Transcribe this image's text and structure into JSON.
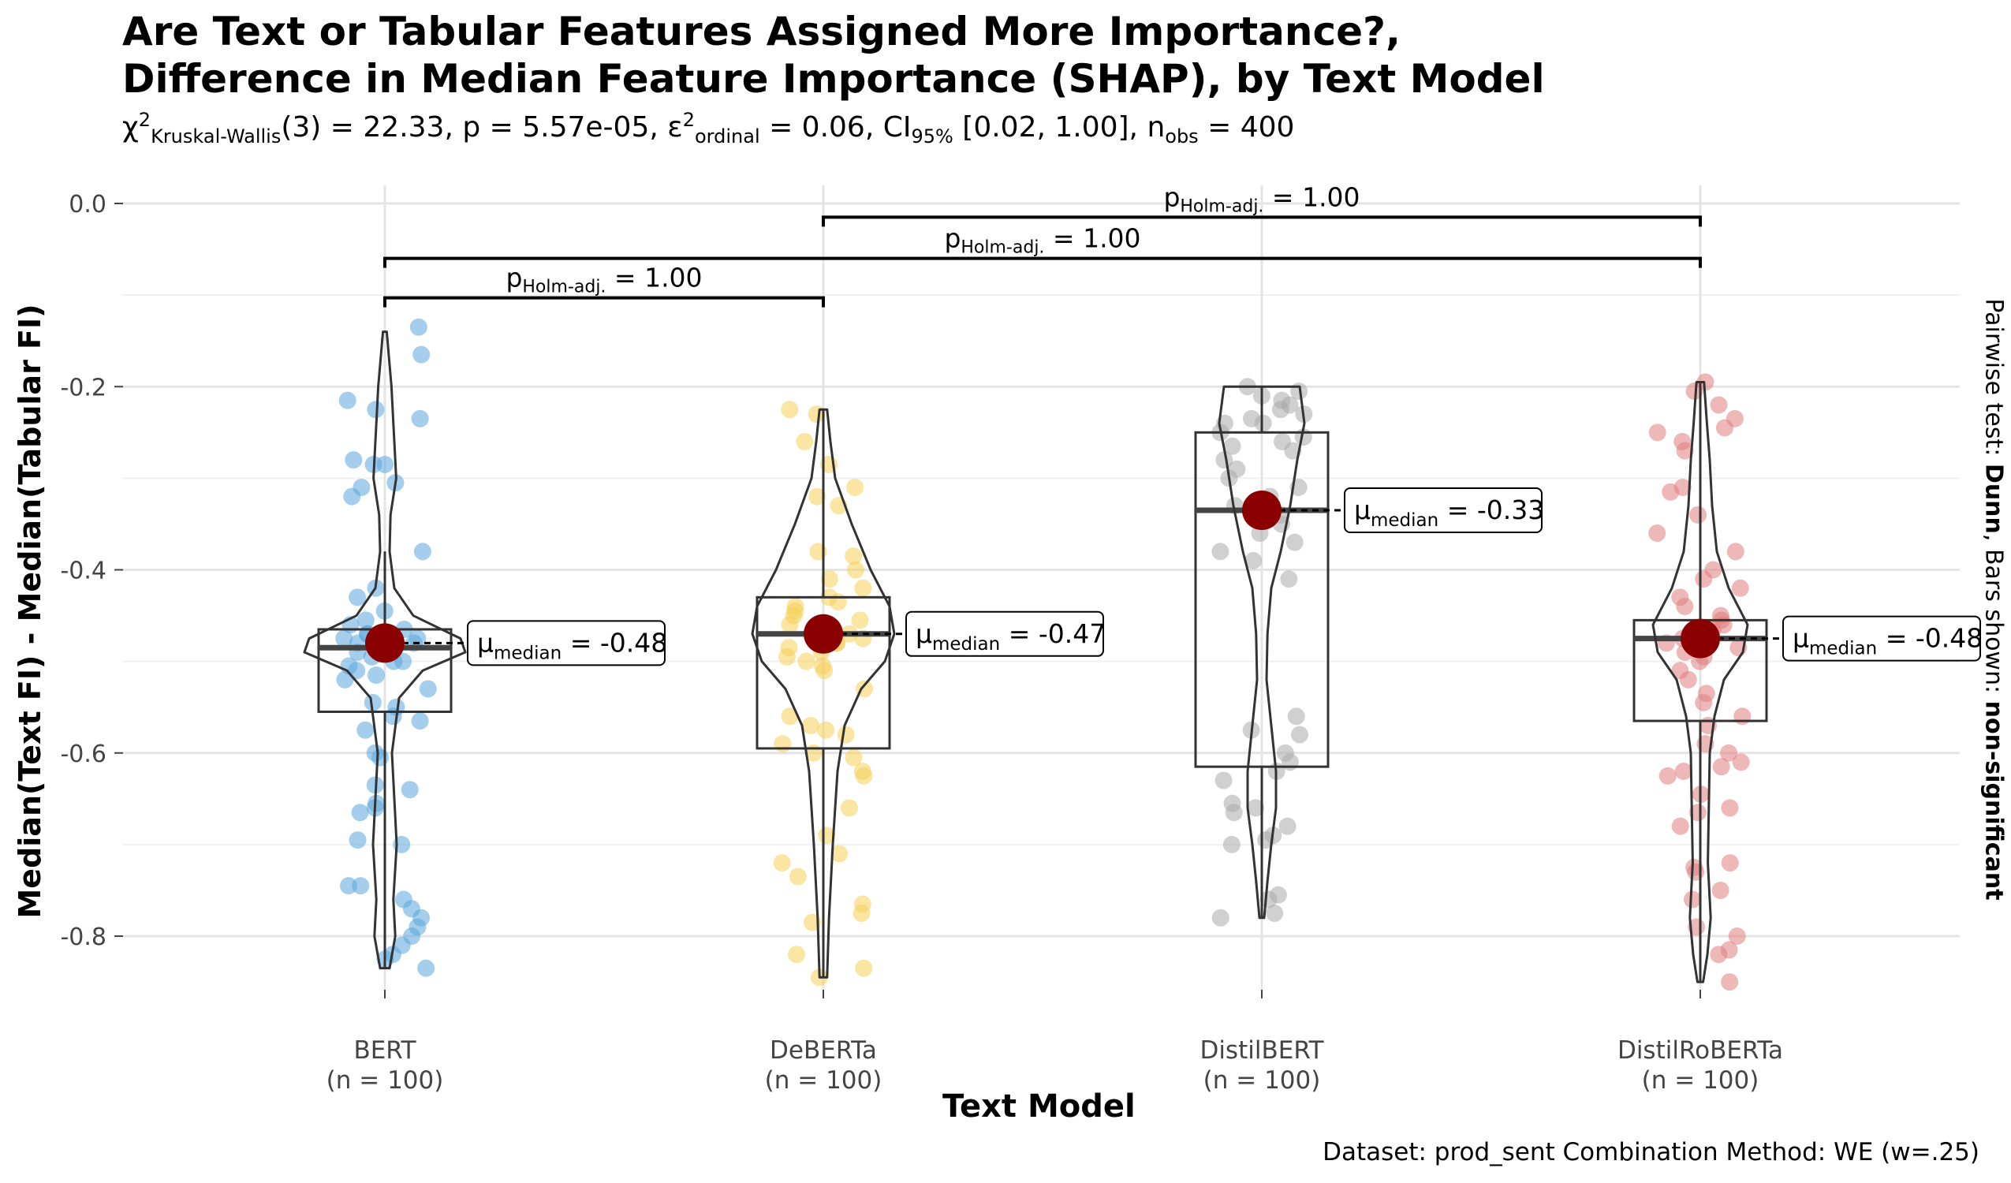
{
  "title": "Are Text or Tabular Features Assigned More Importance?,\nDifference in Median Feature Importance (SHAP), by Text Model",
  "subtitle": {
    "chi": "χ",
    "chi_sup": "2",
    "chi_sub": "Kruskal-Wallis",
    "stat": "(3) = 22.33, p = 5.57e-05, ",
    "eps": "ε",
    "eps_sup": "2",
    "eps_sub": "ordinal",
    "eps_val": " = 0.06, CI",
    "ci_sub": "95%",
    "ci_val": " [0.02, 1.00], n",
    "n_sub": "obs",
    "n_val": " = 400"
  },
  "xlabel": "Text Model",
  "ylabel": "Median(Text FI) - Median(Tabular FI)",
  "side_note": {
    "prefix": "Pairwise test: ",
    "test": "Dunn",
    "middle": ", Bars shown: ",
    "shown": "non-significant"
  },
  "caption": "Dataset:  prod_sent Combination Method:  WE (w=.25)",
  "chart_data": {
    "type": "violin",
    "categories": [
      "BERT",
      "DeBERTa",
      "DistilBERT",
      "DistilRoBERTa"
    ],
    "category_counts": [
      "(n = 100)",
      "(n = 100)",
      "(n = 100)",
      "(n = 100)"
    ],
    "ylim": [
      -0.87,
      0.02
    ],
    "yticks": [
      0.0,
      -0.2,
      -0.4,
      -0.6,
      -0.8
    ],
    "ytick_labels": [
      "0.0",
      "-0.2",
      "-0.4",
      "-0.6",
      "-0.8"
    ],
    "grid": true,
    "colors": {
      "BERT": "#5aa5dc",
      "DeBERTa": "#f5cf58",
      "DistilBERT": "#a9a9a9",
      "DistilRoBERTa": "#e07e7e",
      "median_point": "#8b0000"
    },
    "series": [
      {
        "name": "BERT",
        "median": -0.48,
        "median_label": "-0.48",
        "box": {
          "q1": -0.555,
          "median": -0.485,
          "q3": -0.465,
          "whisker_low": -0.835,
          "whisker_high": -0.38
        },
        "violin": [
          [
            -0.14,
            0.004
          ],
          [
            -0.2,
            0.014
          ],
          [
            -0.26,
            0.02
          ],
          [
            -0.3,
            0.024
          ],
          [
            -0.34,
            0.012
          ],
          [
            -0.38,
            0.01
          ],
          [
            -0.42,
            0.02
          ],
          [
            -0.45,
            0.06
          ],
          [
            -0.475,
            0.16
          ],
          [
            -0.49,
            0.17
          ],
          [
            -0.51,
            0.08
          ],
          [
            -0.54,
            0.03
          ],
          [
            -0.6,
            0.015
          ],
          [
            -0.7,
            0.025
          ],
          [
            -0.76,
            0.018
          ],
          [
            -0.8,
            0.022
          ],
          [
            -0.835,
            0.01
          ]
        ],
        "points": [
          -0.135,
          -0.165,
          -0.215,
          -0.225,
          -0.235,
          -0.28,
          -0.285,
          -0.285,
          -0.305,
          -0.31,
          -0.32,
          -0.38,
          -0.42,
          -0.43,
          -0.445,
          -0.455,
          -0.46,
          -0.465,
          -0.47,
          -0.47,
          -0.475,
          -0.475,
          -0.48,
          -0.48,
          -0.485,
          -0.49,
          -0.49,
          -0.495,
          -0.5,
          -0.5,
          -0.505,
          -0.51,
          -0.515,
          -0.52,
          -0.53,
          -0.545,
          -0.55,
          -0.56,
          -0.565,
          -0.575,
          -0.6,
          -0.605,
          -0.635,
          -0.64,
          -0.655,
          -0.66,
          -0.665,
          -0.695,
          -0.7,
          -0.745,
          -0.745,
          -0.76,
          -0.77,
          -0.78,
          -0.79,
          -0.8,
          -0.81,
          -0.82,
          -0.825,
          -0.835
        ]
      },
      {
        "name": "DeBERTa",
        "median": -0.47,
        "median_label": "-0.47",
        "box": {
          "q1": -0.595,
          "median": -0.47,
          "q3": -0.43,
          "whisker_low": -0.845,
          "whisker_high": -0.225
        },
        "violin": [
          [
            -0.225,
            0.008
          ],
          [
            -0.26,
            0.015
          ],
          [
            -0.3,
            0.025
          ],
          [
            -0.35,
            0.06
          ],
          [
            -0.4,
            0.1
          ],
          [
            -0.44,
            0.14
          ],
          [
            -0.47,
            0.15
          ],
          [
            -0.5,
            0.13
          ],
          [
            -0.53,
            0.08
          ],
          [
            -0.57,
            0.045
          ],
          [
            -0.62,
            0.03
          ],
          [
            -0.7,
            0.02
          ],
          [
            -0.78,
            0.012
          ],
          [
            -0.845,
            0.008
          ]
        ],
        "points": [
          -0.225,
          -0.23,
          -0.26,
          -0.285,
          -0.31,
          -0.32,
          -0.33,
          -0.38,
          -0.385,
          -0.4,
          -0.41,
          -0.42,
          -0.43,
          -0.435,
          -0.44,
          -0.445,
          -0.45,
          -0.455,
          -0.46,
          -0.465,
          -0.47,
          -0.47,
          -0.475,
          -0.48,
          -0.48,
          -0.485,
          -0.49,
          -0.495,
          -0.5,
          -0.505,
          -0.51,
          -0.53,
          -0.56,
          -0.57,
          -0.575,
          -0.58,
          -0.59,
          -0.6,
          -0.605,
          -0.62,
          -0.625,
          -0.66,
          -0.69,
          -0.71,
          -0.72,
          -0.735,
          -0.765,
          -0.775,
          -0.785,
          -0.82,
          -0.835,
          -0.845
        ]
      },
      {
        "name": "DistilBERT",
        "median": -0.335,
        "median_label": "-0.33",
        "box": {
          "q1": -0.615,
          "median": -0.335,
          "q3": -0.25,
          "whisker_low": -0.78,
          "whisker_high": -0.2
        },
        "violin": [
          [
            -0.2,
            0.08
          ],
          [
            -0.24,
            0.09
          ],
          [
            -0.28,
            0.075
          ],
          [
            -0.33,
            0.06
          ],
          [
            -0.38,
            0.04
          ],
          [
            -0.42,
            0.02
          ],
          [
            -0.47,
            0.012
          ],
          [
            -0.52,
            0.01
          ],
          [
            -0.57,
            0.02
          ],
          [
            -0.62,
            0.03
          ],
          [
            -0.66,
            0.03
          ],
          [
            -0.7,
            0.02
          ],
          [
            -0.74,
            0.012
          ],
          [
            -0.78,
            0.005
          ]
        ],
        "points": [
          -0.2,
          -0.205,
          -0.21,
          -0.215,
          -0.22,
          -0.225,
          -0.23,
          -0.235,
          -0.24,
          -0.24,
          -0.25,
          -0.255,
          -0.26,
          -0.265,
          -0.27,
          -0.28,
          -0.29,
          -0.3,
          -0.31,
          -0.32,
          -0.33,
          -0.34,
          -0.35,
          -0.36,
          -0.37,
          -0.38,
          -0.39,
          -0.41,
          -0.56,
          -0.575,
          -0.58,
          -0.6,
          -0.61,
          -0.62,
          -0.63,
          -0.655,
          -0.66,
          -0.665,
          -0.68,
          -0.69,
          -0.695,
          -0.7,
          -0.755,
          -0.76,
          -0.775,
          -0.78
        ]
      },
      {
        "name": "DistilRoBERTa",
        "median": -0.475,
        "median_label": "-0.48",
        "box": {
          "q1": -0.565,
          "median": -0.475,
          "q3": -0.455,
          "whisker_low": -0.85,
          "whisker_high": -0.195
        },
        "violin": [
          [
            -0.195,
            0.008
          ],
          [
            -0.24,
            0.014
          ],
          [
            -0.28,
            0.02
          ],
          [
            -0.33,
            0.025
          ],
          [
            -0.38,
            0.035
          ],
          [
            -0.42,
            0.06
          ],
          [
            -0.46,
            0.1
          ],
          [
            -0.49,
            0.09
          ],
          [
            -0.52,
            0.05
          ],
          [
            -0.56,
            0.03
          ],
          [
            -0.6,
            0.02
          ],
          [
            -0.66,
            0.018
          ],
          [
            -0.72,
            0.016
          ],
          [
            -0.78,
            0.022
          ],
          [
            -0.82,
            0.015
          ],
          [
            -0.85,
            0.006
          ]
        ],
        "points": [
          -0.195,
          -0.205,
          -0.22,
          -0.235,
          -0.245,
          -0.25,
          -0.26,
          -0.27,
          -0.31,
          -0.315,
          -0.34,
          -0.36,
          -0.38,
          -0.4,
          -0.41,
          -0.42,
          -0.43,
          -0.44,
          -0.45,
          -0.455,
          -0.46,
          -0.465,
          -0.47,
          -0.475,
          -0.48,
          -0.485,
          -0.49,
          -0.495,
          -0.5,
          -0.51,
          -0.52,
          -0.535,
          -0.545,
          -0.56,
          -0.57,
          -0.59,
          -0.6,
          -0.61,
          -0.615,
          -0.62,
          -0.625,
          -0.645,
          -0.66,
          -0.665,
          -0.68,
          -0.72,
          -0.725,
          -0.73,
          -0.75,
          -0.76,
          -0.79,
          -0.8,
          -0.815,
          -0.82,
          -0.85
        ]
      }
    ],
    "pairwise_bars": [
      {
        "from": "DeBERTa",
        "to": "DistilRoBERTa",
        "level": -0.015,
        "label_p": "p",
        "label_sub": "Holm-adj.",
        "label_val": " = 1.00"
      },
      {
        "from": "BERT",
        "to": "DistilRoBERTa",
        "level": -0.06,
        "label_p": "p",
        "label_sub": "Holm-adj.",
        "label_val": " = 1.00"
      },
      {
        "from": "BERT",
        "to": "DeBERTa",
        "level": -0.103,
        "label_p": "p",
        "label_sub": "Holm-adj.",
        "label_val": " = 1.00"
      }
    ],
    "median_label_prefix": "μ",
    "median_label_sub": "median"
  }
}
